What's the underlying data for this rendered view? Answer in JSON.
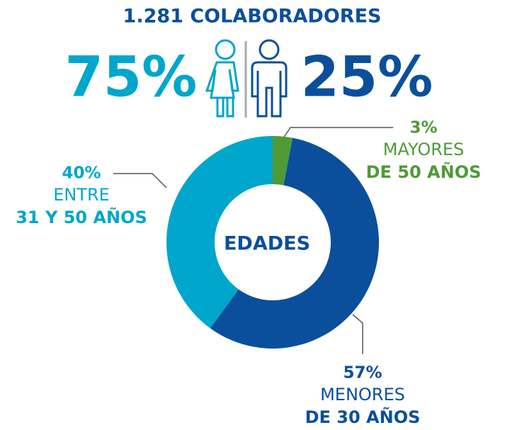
{
  "header": {
    "title": "1.281 COLABORADORES",
    "women": "75%",
    "men": "25%"
  },
  "chart_data": {
    "type": "pie",
    "donut": true,
    "center_label": "EDADES",
    "categories": [
      [
        "MAYORES",
        "DE 50 AÑOS"
      ],
      [
        "MENORES",
        "DE 30 AÑOS"
      ],
      [
        "ENTRE",
        "31 Y 50 AÑOS"
      ]
    ],
    "values": [
      3,
      57,
      40
    ],
    "value_labels": [
      "3%",
      "57%",
      "40%"
    ],
    "colors": [
      "#4f9a37",
      "#0b4f9c",
      "#00a6cc"
    ]
  }
}
